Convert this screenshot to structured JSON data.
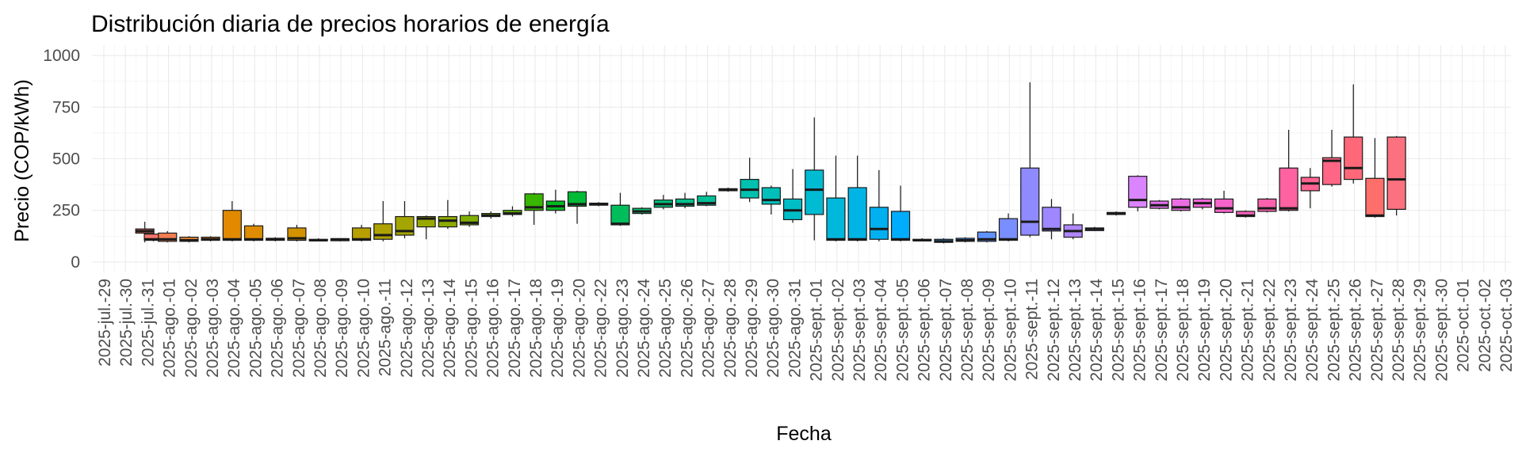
{
  "chart_data": {
    "type": "boxplot",
    "title": "Distribución diaria de precios horarios de energía",
    "xlabel": "Fecha",
    "ylabel": "Precio (COP/kWh)",
    "ylim": [
      -50,
      1050
    ],
    "y_ticks": [
      0,
      250,
      500,
      750,
      1000
    ],
    "grid": true,
    "legend": "none",
    "x_tick_labels": [
      "2025-jul.-29",
      "2025-jul.-30",
      "2025-jul.-31",
      "2025-ago.-01",
      "2025-ago.-02",
      "2025-ago.-03",
      "2025-ago.-04",
      "2025-ago.-05",
      "2025-ago.-06",
      "2025-ago.-07",
      "2025-ago.-08",
      "2025-ago.-09",
      "2025-ago.-10",
      "2025-ago.-11",
      "2025-ago.-12",
      "2025-ago.-13",
      "2025-ago.-14",
      "2025-ago.-15",
      "2025-ago.-16",
      "2025-ago.-17",
      "2025-ago.-18",
      "2025-ago.-19",
      "2025-ago.-20",
      "2025-ago.-22",
      "2025-ago.-23",
      "2025-ago.-24",
      "2025-ago.-25",
      "2025-ago.-26",
      "2025-ago.-27",
      "2025-ago.-28",
      "2025-ago.-29",
      "2025-ago.-30",
      "2025-ago.-31",
      "2025-sept.-01",
      "2025-sept.-02",
      "2025-sept.-03",
      "2025-sept.-04",
      "2025-sept.-05",
      "2025-sept.-06",
      "2025-sept.-07",
      "2025-sept.-08",
      "2025-sept.-09",
      "2025-sept.-10",
      "2025-sept.-11",
      "2025-sept.-12",
      "2025-sept.-13",
      "2025-sept.-14",
      "2025-sept.-15",
      "2025-sept.-16",
      "2025-sept.-17",
      "2025-sept.-18",
      "2025-sept.-19",
      "2025-sept.-20",
      "2025-sept.-21",
      "2025-sept.-22",
      "2025-sept.-23",
      "2025-sept.-24",
      "2025-sept.-25",
      "2025-sept.-26",
      "2025-sept.-27",
      "2025-sept.-28",
      "2025-sept.-29",
      "2025-sept.-30",
      "2025-oct.-01",
      "2025-oct.-02",
      "2025-oct.-03"
    ],
    "boxes": [
      {
        "x": 2.9,
        "min": 95,
        "q1": 140,
        "median": 150,
        "q3": 160,
        "max": 195,
        "color": "#F8766D"
      },
      {
        "x": 3.3,
        "min": 100,
        "q1": 105,
        "median": 110,
        "q3": 135,
        "max": 140,
        "color": "#F8766D"
      },
      {
        "x": 3.95,
        "min": 95,
        "q1": 100,
        "median": 110,
        "q3": 140,
        "max": 150,
        "color": "#F27D52"
      },
      {
        "x": 4.95,
        "min": 95,
        "q1": 100,
        "median": 105,
        "q3": 120,
        "max": 125,
        "color": "#EA8331"
      },
      {
        "x": 5.95,
        "min": 100,
        "q1": 105,
        "median": 110,
        "q3": 120,
        "max": 125,
        "color": "#E58700"
      },
      {
        "x": 6.95,
        "min": 100,
        "q1": 105,
        "median": 110,
        "q3": 250,
        "max": 295,
        "color": "#E18A00"
      },
      {
        "x": 7.95,
        "min": 100,
        "q1": 105,
        "median": 110,
        "q3": 175,
        "max": 185,
        "color": "#DE8C00"
      },
      {
        "x": 8.95,
        "min": 100,
        "q1": 105,
        "median": 110,
        "q3": 115,
        "max": 120,
        "color": "#D89000"
      },
      {
        "x": 9.95,
        "min": 100,
        "q1": 105,
        "median": 115,
        "q3": 165,
        "max": 180,
        "color": "#D39200"
      },
      {
        "x": 10.95,
        "min": 100,
        "q1": 103,
        "median": 105,
        "q3": 110,
        "max": 115,
        "color": "#C99800"
      },
      {
        "x": 11.95,
        "min": 100,
        "q1": 103,
        "median": 110,
        "q3": 112,
        "max": 115,
        "color": "#C09B00"
      },
      {
        "x": 12.95,
        "min": 100,
        "q1": 105,
        "median": 110,
        "q3": 165,
        "max": 180,
        "color": "#B79F00"
      },
      {
        "x": 13.95,
        "min": 100,
        "q1": 110,
        "median": 130,
        "q3": 185,
        "max": 295,
        "color": "#AEA200"
      },
      {
        "x": 14.95,
        "min": 115,
        "q1": 130,
        "median": 150,
        "q3": 220,
        "max": 295,
        "color": "#A3A500"
      },
      {
        "x": 15.95,
        "min": 110,
        "q1": 170,
        "median": 210,
        "q3": 220,
        "max": 225,
        "color": "#98A800"
      },
      {
        "x": 16.95,
        "min": 160,
        "q1": 170,
        "median": 200,
        "q3": 220,
        "max": 300,
        "color": "#8DAB00"
      },
      {
        "x": 17.95,
        "min": 170,
        "q1": 180,
        "median": 190,
        "q3": 225,
        "max": 245,
        "color": "#7FAE00"
      },
      {
        "x": 18.95,
        "min": 210,
        "q1": 220,
        "median": 225,
        "q3": 235,
        "max": 245,
        "color": "#6FB000"
      },
      {
        "x": 19.95,
        "min": 220,
        "q1": 230,
        "median": 235,
        "q3": 250,
        "max": 270,
        "color": "#5BB300"
      },
      {
        "x": 20.95,
        "min": 180,
        "q1": 250,
        "median": 265,
        "q3": 330,
        "max": 335,
        "color": "#39B600"
      },
      {
        "x": 21.95,
        "min": 235,
        "q1": 250,
        "median": 270,
        "q3": 295,
        "max": 350,
        "color": "#00B81F"
      },
      {
        "x": 22.95,
        "min": 185,
        "q1": 270,
        "median": 280,
        "q3": 340,
        "max": 345,
        "color": "#00BA38"
      },
      {
        "x": 23.95,
        "min": 270,
        "q1": 275,
        "median": 280,
        "q3": 285,
        "max": 290,
        "color": "#00BB4E"
      },
      {
        "x": 24.95,
        "min": 175,
        "q1": 180,
        "median": 185,
        "q3": 275,
        "max": 335,
        "color": "#00BD5C"
      },
      {
        "x": 25.95,
        "min": 230,
        "q1": 235,
        "median": 245,
        "q3": 260,
        "max": 265,
        "color": "#00BE6C"
      },
      {
        "x": 26.95,
        "min": 255,
        "q1": 265,
        "median": 280,
        "q3": 300,
        "max": 325,
        "color": "#00BF7D"
      },
      {
        "x": 27.95,
        "min": 260,
        "q1": 270,
        "median": 280,
        "q3": 305,
        "max": 335,
        "color": "#00C08B"
      },
      {
        "x": 28.95,
        "min": 270,
        "q1": 275,
        "median": 285,
        "q3": 320,
        "max": 340,
        "color": "#00C098"
      },
      {
        "x": 29.95,
        "min": 340,
        "q1": 345,
        "median": 350,
        "q3": 355,
        "max": 360,
        "color": "#00C1A3"
      },
      {
        "x": 30.95,
        "min": 290,
        "q1": 310,
        "median": 350,
        "q3": 400,
        "max": 505,
        "color": "#00C0AF"
      },
      {
        "x": 31.95,
        "min": 230,
        "q1": 280,
        "median": 300,
        "q3": 360,
        "max": 370,
        "color": "#00BFBB"
      },
      {
        "x": 32.95,
        "min": 190,
        "q1": 205,
        "median": 250,
        "q3": 305,
        "max": 450,
        "color": "#00BDC6"
      },
      {
        "x": 33.95,
        "min": 105,
        "q1": 230,
        "median": 350,
        "q3": 445,
        "max": 700,
        "color": "#00BBD1"
      },
      {
        "x": 34.95,
        "min": 100,
        "q1": 105,
        "median": 110,
        "q3": 310,
        "max": 515,
        "color": "#00B8DC"
      },
      {
        "x": 35.95,
        "min": 100,
        "q1": 105,
        "median": 110,
        "q3": 360,
        "max": 515,
        "color": "#00B5E6"
      },
      {
        "x": 36.95,
        "min": 100,
        "q1": 110,
        "median": 160,
        "q3": 265,
        "max": 445,
        "color": "#00B0F0"
      },
      {
        "x": 37.95,
        "min": 100,
        "q1": 105,
        "median": 110,
        "q3": 245,
        "max": 370,
        "color": "#00ACFC"
      },
      {
        "x": 38.95,
        "min": 100,
        "q1": 103,
        "median": 105,
        "q3": 110,
        "max": 115,
        "color": "#00A5FF"
      },
      {
        "x": 39.95,
        "min": 90,
        "q1": 95,
        "median": 100,
        "q3": 110,
        "max": 115,
        "color": "#1F9FFF"
      },
      {
        "x": 40.95,
        "min": 95,
        "q1": 100,
        "median": 105,
        "q3": 115,
        "max": 120,
        "color": "#3B99FF"
      },
      {
        "x": 41.95,
        "min": 95,
        "q1": 100,
        "median": 110,
        "q3": 145,
        "max": 150,
        "color": "#6093FF"
      },
      {
        "x": 42.95,
        "min": 100,
        "q1": 105,
        "median": 110,
        "q3": 210,
        "max": 235,
        "color": "#798EFF"
      },
      {
        "x": 43.95,
        "min": 120,
        "q1": 130,
        "median": 195,
        "q3": 455,
        "max": 870,
        "color": "#8F8AFF"
      },
      {
        "x": 44.95,
        "min": 110,
        "q1": 150,
        "median": 160,
        "q3": 265,
        "max": 305,
        "color": "#9F87FF"
      },
      {
        "x": 45.95,
        "min": 110,
        "q1": 120,
        "median": 150,
        "q3": 180,
        "max": 235,
        "color": "#B086FF"
      },
      {
        "x": 46.95,
        "min": 150,
        "q1": 152,
        "median": 160,
        "q3": 165,
        "max": 170,
        "color": "#BF85FF"
      },
      {
        "x": 47.95,
        "min": 225,
        "q1": 230,
        "median": 235,
        "q3": 240,
        "max": 245,
        "color": "#CE83FF"
      },
      {
        "x": 48.95,
        "min": 245,
        "q1": 265,
        "median": 300,
        "q3": 415,
        "max": 420,
        "color": "#DA84FF"
      },
      {
        "x": 49.95,
        "min": 255,
        "q1": 260,
        "median": 275,
        "q3": 295,
        "max": 300,
        "color": "#E36FEF"
      },
      {
        "x": 50.95,
        "min": 245,
        "q1": 250,
        "median": 265,
        "q3": 305,
        "max": 310,
        "color": "#EB6DE4"
      },
      {
        "x": 51.95,
        "min": 255,
        "q1": 265,
        "median": 285,
        "q3": 305,
        "max": 310,
        "color": "#F166D8"
      },
      {
        "x": 52.95,
        "min": 235,
        "q1": 240,
        "median": 260,
        "q3": 305,
        "max": 345,
        "color": "#F663CA"
      },
      {
        "x": 53.95,
        "min": 215,
        "q1": 220,
        "median": 225,
        "q3": 245,
        "max": 250,
        "color": "#FA62BC"
      },
      {
        "x": 54.95,
        "min": 240,
        "q1": 245,
        "median": 260,
        "q3": 305,
        "max": 310,
        "color": "#FD61AE"
      },
      {
        "x": 55.95,
        "min": 245,
        "q1": 250,
        "median": 260,
        "q3": 455,
        "max": 640,
        "color": "#FF62A0"
      },
      {
        "x": 56.95,
        "min": 260,
        "q1": 345,
        "median": 380,
        "q3": 410,
        "max": 455,
        "color": "#FF6392"
      },
      {
        "x": 57.95,
        "min": 365,
        "q1": 375,
        "median": 490,
        "q3": 505,
        "max": 640,
        "color": "#FF6585"
      },
      {
        "x": 58.95,
        "min": 380,
        "q1": 400,
        "median": 455,
        "q3": 605,
        "max": 860,
        "color": "#FF6879"
      },
      {
        "x": 59.95,
        "min": 215,
        "q1": 220,
        "median": 225,
        "q3": 405,
        "max": 600,
        "color": "#FE6E6A"
      },
      {
        "x": 60.95,
        "min": 225,
        "q1": 255,
        "median": 400,
        "q3": 605,
        "max": 610,
        "color": "#FC717F"
      }
    ]
  }
}
